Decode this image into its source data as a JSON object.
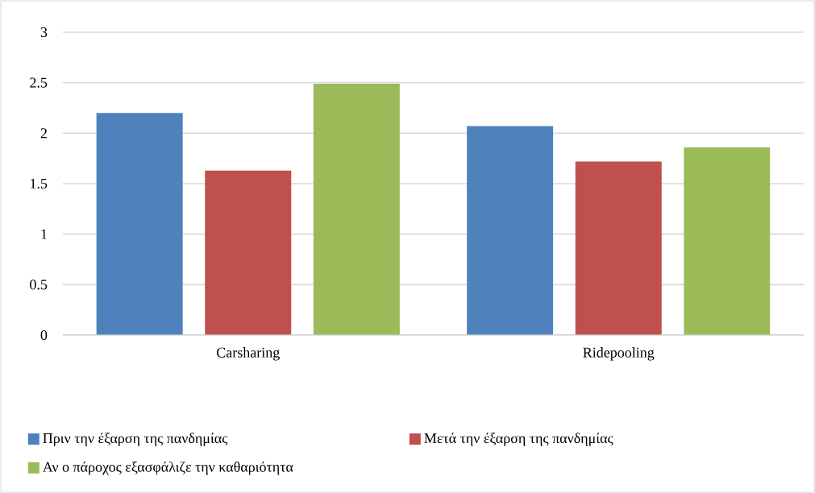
{
  "chart_data": {
    "type": "bar",
    "categories": [
      "Carsharing",
      "Ridepooling"
    ],
    "series": [
      {
        "name": "Πριν την έξαρση της πανδημίας",
        "color": "#4f81bd",
        "values": [
          2.2,
          2.07
        ]
      },
      {
        "name": "Μετά την έξαρση της πανδημίας",
        "color": "#c0504d",
        "values": [
          1.63,
          1.72
        ]
      },
      {
        "name": "Αν ο πάροχος εξασφάλιζε την καθαριότητα",
        "color": "#9bbb59",
        "values": [
          2.49,
          1.86
        ]
      }
    ],
    "ylim": [
      0,
      3
    ],
    "yticks": [
      0,
      0.5,
      1,
      1.5,
      2,
      2.5,
      3
    ],
    "grid": "y",
    "legend": "bottom"
  }
}
